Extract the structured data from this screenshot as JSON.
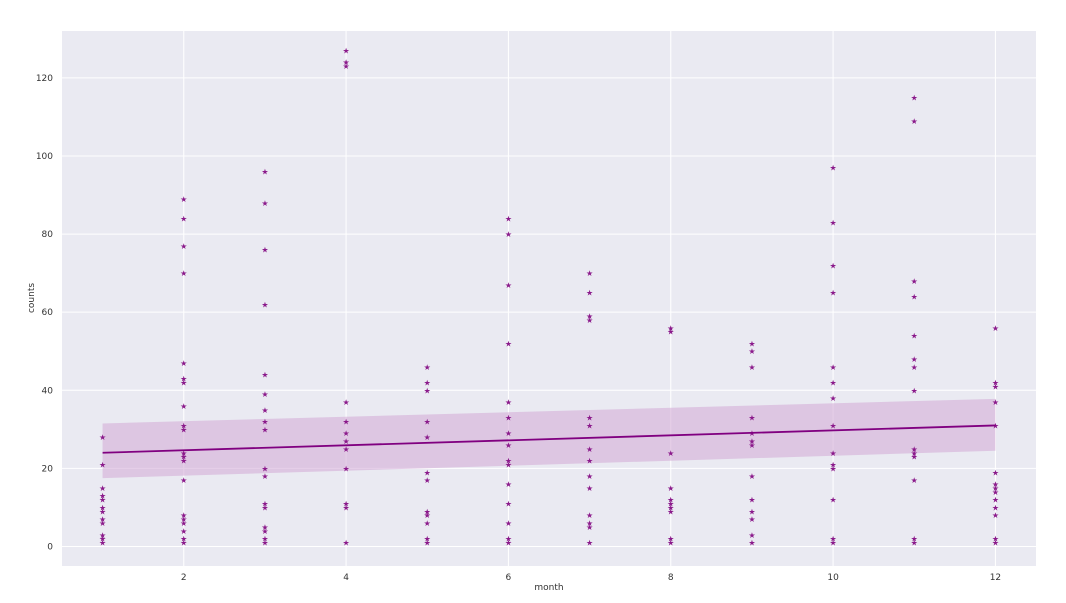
{
  "colors": {
    "plot_bg": "#eaeaf2",
    "grid": "#ffffff",
    "marker": "#8b1a8b",
    "line": "#800080",
    "band": "#d2a8d6"
  },
  "chart_data": {
    "type": "scatter",
    "xlabel": "month",
    "ylabel": "counts",
    "xlim": [
      0.5,
      12.5
    ],
    "ylim": [
      -5,
      132
    ],
    "xticks": [
      2,
      4,
      6,
      8,
      10,
      12
    ],
    "yticks": [
      0,
      20,
      40,
      60,
      80,
      100,
      120
    ],
    "grid": true,
    "marker": "star",
    "points": {
      "1": [
        28,
        21,
        15,
        13,
        12,
        10,
        9,
        7,
        6,
        3,
        2,
        1
      ],
      "2": [
        89,
        84,
        77,
        70,
        47,
        43,
        42,
        36,
        31,
        30,
        24,
        23,
        22,
        17,
        8,
        7,
        6,
        4,
        2,
        1
      ],
      "3": [
        96,
        88,
        76,
        62,
        44,
        39,
        35,
        32,
        30,
        20,
        18,
        11,
        10,
        5,
        4,
        2,
        1
      ],
      "4": [
        127,
        124,
        123,
        37,
        32,
        29,
        27,
        25,
        20,
        11,
        10,
        1
      ],
      "5": [
        46,
        42,
        40,
        32,
        28,
        19,
        17,
        9,
        8,
        6,
        2,
        1
      ],
      "6": [
        84,
        80,
        67,
        52,
        37,
        33,
        29,
        26,
        22,
        21,
        16,
        11,
        6,
        2,
        1
      ],
      "7": [
        70,
        65,
        59,
        58,
        33,
        31,
        25,
        22,
        18,
        15,
        8,
        6,
        5,
        1
      ],
      "8": [
        56,
        55,
        24,
        15,
        12,
        11,
        10,
        9,
        2,
        1
      ],
      "9": [
        52,
        50,
        46,
        33,
        29,
        27,
        26,
        18,
        12,
        9,
        7,
        3,
        1
      ],
      "10": [
        97,
        83,
        72,
        65,
        46,
        42,
        38,
        31,
        24,
        21,
        20,
        12,
        2,
        1
      ],
      "11": [
        115,
        109,
        68,
        64,
        54,
        48,
        46,
        40,
        25,
        24,
        23,
        17,
        2,
        1
      ],
      "12": [
        56,
        42,
        41,
        37,
        31,
        19,
        16,
        15,
        14,
        12,
        10,
        8,
        2,
        1
      ]
    },
    "regression": {
      "x": [
        1,
        12
      ],
      "y": [
        24,
        31
      ],
      "ci_lower": [
        17.5,
        24.5
      ],
      "ci_upper": [
        31.5,
        37.8
      ]
    }
  }
}
